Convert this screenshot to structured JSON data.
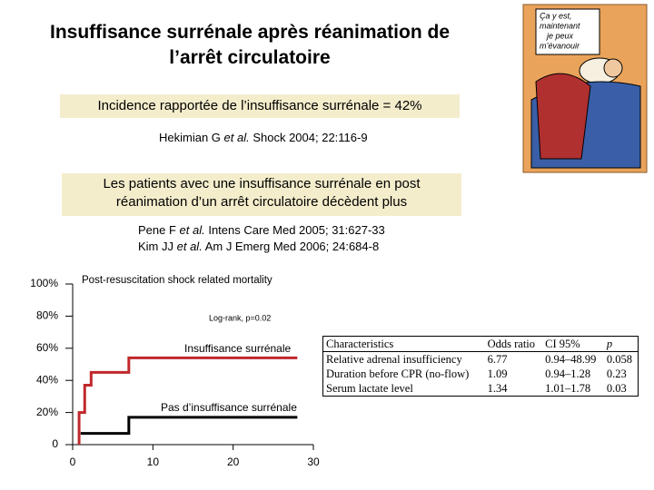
{
  "title": [
    "Insuffisance surrénale après réanimation de",
    "l’arrêt circulatoire"
  ],
  "box1": "Incidence rapportée de l’insuffisance surrénale = 42%",
  "ref1": [
    "Hekimian G ",
    "et al.",
    " Shock 2004; 22:116-9"
  ],
  "box2": [
    "Les patients avec une insuffisance surrénale en post",
    "réanimation d’un arrêt circulatoire décèdent plus"
  ],
  "ref2": [
    [
      "Pene F ",
      "et al.",
      " Intens Care Med 2005; 31:627-33"
    ],
    [
      "Kim JJ ",
      "et al.",
      " Am J Emerg Med 2006; 24:684-8"
    ]
  ],
  "cartoon_caption": [
    "Ça y est,",
    "maintenant",
    "je peux",
    "m’évanouir"
  ],
  "chart_data": {
    "type": "line",
    "title": "Post-resuscitation shock related mortality",
    "annotation": "Log-rank, p=0.02",
    "xlim": [
      0,
      30
    ],
    "xticks": [
      0,
      10,
      20,
      30
    ],
    "ylim": [
      0,
      100
    ],
    "yticks": [
      0,
      {
        "value": 20,
        "label": "20%"
      },
      {
        "value": 40,
        "label": "40%"
      },
      {
        "value": 60,
        "label": "60%"
      },
      {
        "value": 80,
        "label": "80%"
      },
      {
        "value": 100,
        "label": "100%"
      }
    ],
    "series": [
      {
        "name": "Insuffisance surrénale",
        "color": "#c0282d",
        "x": [
          0.8,
          0.8,
          1.5,
          1.5,
          2.3,
          2.3,
          7,
          7,
          28
        ],
        "values": [
          0,
          20,
          20,
          37,
          37,
          45,
          45,
          54,
          54
        ]
      },
      {
        "name": "Pas d’insuffisance surrénale",
        "color": "#000000",
        "x": [
          1,
          7,
          7,
          28
        ],
        "values": [
          7,
          7,
          17,
          17
        ]
      }
    ]
  },
  "table": {
    "header": [
      "Characteristics",
      "Odds ratio",
      "CI 95%",
      "p"
    ],
    "rows": [
      [
        "Relative adrenal insufficiency",
        "6.77",
        "0.94–48.99",
        "0.058"
      ],
      [
        "Duration before CPR (no-flow)",
        "1.09",
        "0.94–1.28",
        "0.23"
      ],
      [
        "Serum lactate level",
        "1.34",
        "1.01–1.78",
        "0.03"
      ]
    ]
  }
}
